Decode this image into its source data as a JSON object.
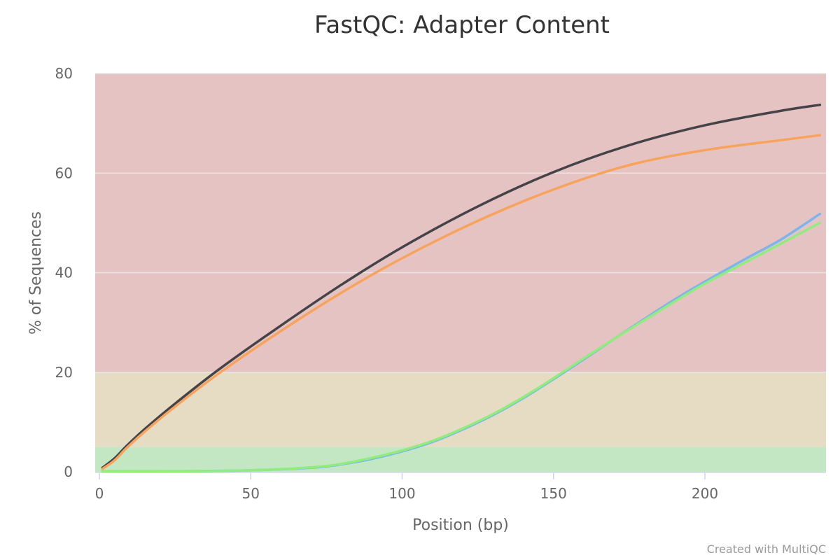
{
  "chart_data": {
    "type": "line",
    "title": "FastQC: Adapter Content",
    "xlabel": "Position (bp)",
    "ylabel": "% of Sequences",
    "xlim": [
      0,
      240
    ],
    "ylim": [
      0,
      80
    ],
    "xticks": [
      0,
      50,
      100,
      150,
      200
    ],
    "yticks": [
      0,
      20,
      40,
      60,
      80
    ],
    "grid": true,
    "legend": "none",
    "bands": [
      {
        "from": 0,
        "to": 5,
        "color": "#c3e6c3"
      },
      {
        "from": 5,
        "to": 20,
        "color": "#e6dcc3"
      },
      {
        "from": 20,
        "to": 80,
        "color": "#e6c3c3"
      }
    ],
    "series": [
      {
        "color": "#434348",
        "x": [
          1,
          5,
          9,
          15,
          25,
          40,
          60,
          80,
          100,
          125,
          150,
          175,
          200,
          225,
          238
        ],
        "y": [
          0.8,
          2.7,
          5.2,
          8.6,
          13.7,
          20.8,
          29.4,
          37.6,
          45.1,
          53.3,
          60.2,
          65.6,
          69.6,
          72.5,
          73.7
        ]
      },
      {
        "color": "#f7a35c",
        "x": [
          1,
          5,
          9,
          15,
          25,
          40,
          60,
          80,
          100,
          125,
          150,
          175,
          200,
          225,
          238
        ],
        "y": [
          0.6,
          2.3,
          4.8,
          8.1,
          13.1,
          20.0,
          28.3,
          36.0,
          42.9,
          50.4,
          56.7,
          61.6,
          64.6,
          66.6,
          67.6
        ]
      },
      {
        "color": "#7cb5ec",
        "x": [
          1,
          25,
          50,
          70,
          80,
          90,
          100,
          110,
          120,
          130,
          140,
          150,
          160,
          175,
          190,
          200,
          215,
          225,
          238
        ],
        "y": [
          0.1,
          0.1,
          0.3,
          0.8,
          1.5,
          2.6,
          4.1,
          6.0,
          8.5,
          11.4,
          14.8,
          18.6,
          22.6,
          28.7,
          34.6,
          38.2,
          43.3,
          46.6,
          51.8
        ]
      },
      {
        "color": "#90ed7d",
        "x": [
          1,
          25,
          50,
          70,
          80,
          90,
          100,
          110,
          120,
          130,
          140,
          150,
          160,
          175,
          190,
          200,
          215,
          225,
          238
        ],
        "y": [
          0.1,
          0.1,
          0.3,
          0.9,
          1.6,
          2.8,
          4.3,
          6.2,
          8.7,
          11.6,
          15.0,
          18.8,
          22.8,
          28.6,
          34.2,
          37.8,
          42.6,
          45.8,
          50.0
        ]
      }
    ]
  },
  "credit": "Created with MultiQC"
}
